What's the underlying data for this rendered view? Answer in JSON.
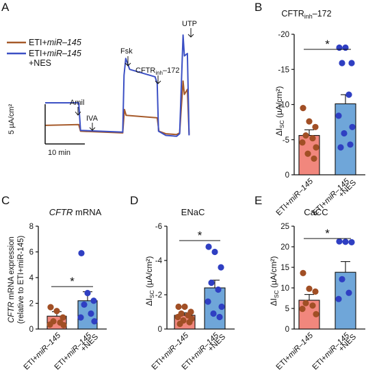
{
  "colors": {
    "eti": "#a65a2a",
    "nes": "#3b4fc4",
    "bar_eti": "#f1877d",
    "bar_nes": "#6fa6d9",
    "dot_eti": "#a14f25",
    "dot_nes": "#2f3fc2",
    "axis": "#111111"
  },
  "panels": {
    "A": {
      "letter": "A",
      "legend": [
        {
          "prefix": "ETI+",
          "italic": "miR–145",
          "suffix": "",
          "second_line": ""
        },
        {
          "prefix": "ETI+",
          "italic": "miR–145",
          "suffix": "",
          "second_line": "+NES"
        }
      ],
      "annotations": [
        "Amil",
        "IVA",
        "Fsk",
        "CFTR",
        "inh",
        "–172",
        "UTP"
      ],
      "scale_y": "5 µA/cm²",
      "scale_x": "10 min"
    },
    "B": {
      "letter": "B",
      "title_main": "CFTR",
      "title_sub": "inh",
      "title_suffix": "–172"
    },
    "C": {
      "letter": "C",
      "title_italic": "CFTR",
      "title_rest": " mRNA",
      "ylabel_line1_italic": "CFTR",
      "ylabel_line1_rest": " mRNA expression",
      "ylabel_line2": "(relative to ETI+miR-145)"
    },
    "D": {
      "letter": "D",
      "title": "ENaC"
    },
    "E": {
      "letter": "E",
      "title": "CaCC"
    }
  },
  "isc_label": {
    "delta": "ΔI",
    "sub": "SC",
    "unit": " (µA/cm²)"
  },
  "group_labels": {
    "eti": {
      "prefix": "ETI+",
      "italic": "miR–145",
      "second_line": ""
    },
    "nes": {
      "prefix": "ETI+",
      "italic": "miR–145",
      "second_line": "+NES"
    }
  },
  "significance": "*",
  "chart_data": [
    {
      "panel": "A",
      "type": "line",
      "x_unit": "min",
      "y_unit": "µA/cm²",
      "series": [
        {
          "name": "ETI+miR–145",
          "points": [
            [
              0,
              0.5
            ],
            [
              7.8,
              0.6
            ],
            [
              8.2,
              -0.2
            ],
            [
              18,
              -0.4
            ],
            [
              18.4,
              2.4
            ],
            [
              18.8,
              1.7
            ],
            [
              26,
              1.4
            ],
            [
              26.4,
              -0.2
            ],
            [
              28,
              -0.5
            ],
            [
              30.5,
              -0.6
            ],
            [
              31.2,
              -0.4
            ],
            [
              32,
              5.8
            ],
            [
              32.3,
              4.2
            ],
            [
              33,
              4.8
            ],
            [
              33.4,
              -0.6
            ]
          ]
        },
        {
          "name": "ETI+miR–145\n+NES",
          "points": [
            [
              0,
              3.2
            ],
            [
              7.8,
              3.2
            ],
            [
              8.2,
              -0.1
            ],
            [
              18,
              -0.3
            ],
            [
              18.3,
              6.5
            ],
            [
              18.7,
              8.5
            ],
            [
              19.6,
              7.2
            ],
            [
              25.5,
              6.3
            ],
            [
              26,
              5.5
            ],
            [
              26.3,
              -0.2
            ],
            [
              28,
              -0.7
            ],
            [
              30.5,
              -0.8
            ],
            [
              31.2,
              -0.5
            ],
            [
              32,
              11.3
            ],
            [
              32.3,
              8.8
            ],
            [
              33,
              9.1
            ],
            [
              33.4,
              -0.7
            ]
          ]
        }
      ],
      "annotations": [
        {
          "text": "Amil",
          "x": 8.0
        },
        {
          "text": "IVA",
          "x": 12.0
        },
        {
          "text": "Fsk",
          "x": 18.5
        },
        {
          "text": "CFTRinh–172",
          "x": 25.8
        },
        {
          "text": "UTP",
          "x": 32.0
        }
      ]
    },
    {
      "panel": "B",
      "type": "bar",
      "title": "CFTRinh–172",
      "ylabel": "ΔISC (µA/cm²)",
      "ylim": [
        0,
        -20
      ],
      "yticks": [
        0,
        -5,
        -10,
        -15,
        -20
      ],
      "categories": [
        "ETI+miR–145",
        "ETI+miR–145\n+NES"
      ],
      "values": [
        -5.6,
        -10.1
      ],
      "errors": [
        0.8,
        1.3
      ],
      "points": [
        [
          -9.5,
          -7.6,
          -6.8,
          -5.6,
          -5.2,
          -4.6,
          -3.9,
          -3.0,
          -2.3
        ],
        [
          -18.1,
          -18.1,
          -15.9,
          -15.9,
          -11.4,
          -8.4,
          -6.8,
          -5.9,
          -4.3,
          -3.9
        ]
      ],
      "significance": "*"
    },
    {
      "panel": "C",
      "type": "bar",
      "title": "CFTR mRNA",
      "ylabel": "CFTR mRNA expression (relative to ETI+miR-145)",
      "ylim": [
        0,
        8
      ],
      "yticks": [
        0,
        2,
        4,
        6,
        8
      ],
      "categories": [
        "ETI+miR–145",
        "ETI+miR–145\n+NES"
      ],
      "values": [
        1.0,
        2.2
      ],
      "errors": [
        0.35,
        0.7
      ],
      "points": [
        [
          1.7,
          1.4,
          0.9,
          0.6,
          0.5,
          0.35,
          0.3
        ],
        [
          5.9,
          2.8,
          2.2,
          1.9,
          1.2,
          0.9,
          0.6
        ]
      ],
      "significance": "*"
    },
    {
      "panel": "D",
      "type": "bar",
      "title": "ENaC",
      "ylabel": "ΔISC (µA/cm²)",
      "ylim": [
        0,
        -6
      ],
      "yticks": [
        0,
        -2,
        -4,
        -6
      ],
      "categories": [
        "ETI+miR–145",
        "ETI+miR–145\n+NES"
      ],
      "values": [
        -0.8,
        -2.4
      ],
      "errors": [
        0.15,
        0.45
      ],
      "points": [
        [
          -1.3,
          -1.3,
          -1.0,
          -0.9,
          -0.8,
          -0.7,
          -0.6,
          -0.5,
          -0.4,
          -0.3
        ],
        [
          -4.8,
          -4.5,
          -3.6,
          -2.7,
          -2.3,
          -1.6,
          -1.3,
          -0.9,
          -0.7
        ]
      ],
      "significance": "*"
    },
    {
      "panel": "E",
      "type": "bar",
      "title": "CaCC",
      "ylabel": "ΔISC (µA/cm²)",
      "ylim": [
        0,
        25
      ],
      "yticks": [
        0,
        5,
        10,
        15,
        20,
        25
      ],
      "categories": [
        "ETI+miR–145",
        "ETI+miR–145\n+NES"
      ],
      "values": [
        7.0,
        13.8
      ],
      "errors": [
        1.4,
        2.6
      ],
      "points": [
        [
          13.6,
          9.8,
          9.1,
          6.3,
          5.7,
          4.9,
          3.6
        ],
        [
          21.3,
          21.2,
          21.1,
          12.1,
          8.8,
          7.3
        ]
      ],
      "significance": "*"
    }
  ]
}
